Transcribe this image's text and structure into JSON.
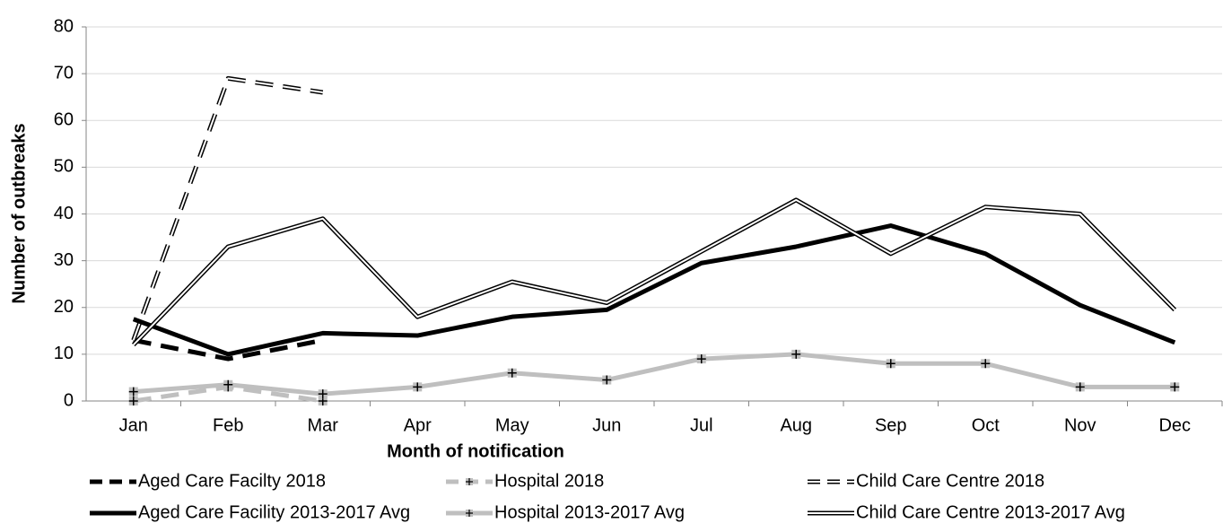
{
  "chart_data": {
    "type": "line",
    "x_label": "Month of notification",
    "y_label": "Number of outbreaks",
    "categories": [
      "Jan",
      "Feb",
      "Mar",
      "Apr",
      "May",
      "Jun",
      "Jul",
      "Aug",
      "Sep",
      "Oct",
      "Nov",
      "Dec"
    ],
    "ylim": [
      0,
      80
    ],
    "yticks": [
      0,
      10,
      20,
      30,
      40,
      50,
      60,
      70,
      80
    ],
    "grid": true,
    "legend": "bottom",
    "series": [
      {
        "name": "Aged Care Facilty 2018",
        "color": "#000000",
        "dashed": true,
        "double": false,
        "marker": false,
        "values": [
          13,
          9,
          13,
          null,
          null,
          null,
          null,
          null,
          null,
          null,
          null,
          null
        ]
      },
      {
        "name": "Hospital 2018",
        "color": "#bfbfbf",
        "dashed": true,
        "double": false,
        "marker": true,
        "values": [
          0,
          3,
          0,
          null,
          null,
          null,
          null,
          null,
          null,
          null,
          null,
          null
        ]
      },
      {
        "name": "Child Care Centre 2018",
        "color": "#000000",
        "dashed": true,
        "double": true,
        "marker": false,
        "values": [
          13,
          69,
          66,
          null,
          null,
          null,
          null,
          null,
          null,
          null,
          null,
          null
        ]
      },
      {
        "name": "Aged Care Facility 2013-2017 Avg",
        "color": "#000000",
        "dashed": false,
        "double": false,
        "marker": false,
        "values": [
          17.5,
          10,
          14.5,
          14,
          18,
          19.5,
          29.5,
          33,
          37.5,
          31.5,
          20.5,
          12.5
        ]
      },
      {
        "name": "Hospital 2013-2017 Avg",
        "color": "#bfbfbf",
        "dashed": false,
        "double": false,
        "marker": true,
        "values": [
          2,
          3.5,
          1.5,
          3,
          6,
          4.5,
          9,
          10,
          8,
          8,
          3,
          3
        ]
      },
      {
        "name": "Child Care Centre 2013-2017 Avg",
        "color": "#000000",
        "dashed": false,
        "double": true,
        "marker": false,
        "values": [
          12,
          33,
          39,
          18,
          25.5,
          21,
          32,
          43,
          31.5,
          41.5,
          40,
          19.5
        ]
      }
    ]
  }
}
